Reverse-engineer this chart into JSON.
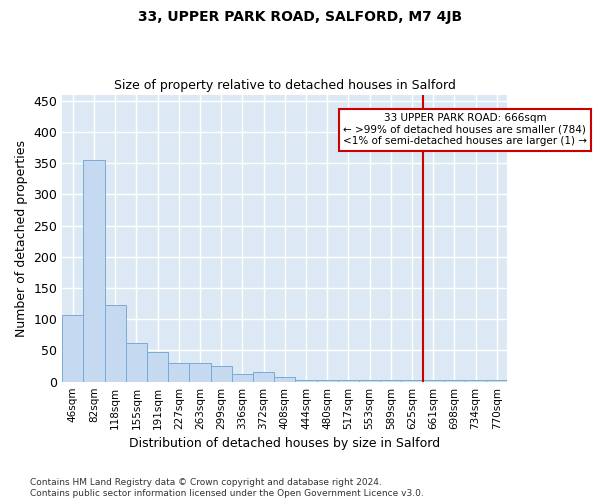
{
  "title": "33, UPPER PARK ROAD, SALFORD, M7 4JB",
  "subtitle": "Size of property relative to detached houses in Salford",
  "xlabel": "Distribution of detached houses by size in Salford",
  "ylabel": "Number of detached properties",
  "bar_color": "#c5d9f0",
  "bar_edge_color": "#7aaad4",
  "background_color": "#dce9f5",
  "grid_color": "#ffffff",
  "categories": [
    "46sqm",
    "82sqm",
    "118sqm",
    "155sqm",
    "191sqm",
    "227sqm",
    "263sqm",
    "299sqm",
    "336sqm",
    "372sqm",
    "408sqm",
    "444sqm",
    "480sqm",
    "517sqm",
    "553sqm",
    "589sqm",
    "625sqm",
    "661sqm",
    "698sqm",
    "734sqm",
    "770sqm"
  ],
  "values": [
    107,
    355,
    123,
    62,
    48,
    30,
    30,
    25,
    13,
    16,
    7,
    3,
    3,
    3,
    3,
    3,
    3,
    3,
    3,
    3,
    3
  ],
  "ylim": [
    0,
    460
  ],
  "yticks": [
    0,
    50,
    100,
    150,
    200,
    250,
    300,
    350,
    400,
    450
  ],
  "vline_index": 17,
  "vline_color": "#cc0000",
  "annotation_text": "33 UPPER PARK ROAD: 666sqm\n← >99% of detached houses are smaller (784)\n<1% of semi-detached houses are larger (1) →",
  "annotation_box_color": "#cc0000",
  "footnote": "Contains HM Land Registry data © Crown copyright and database right 2024.\nContains public sector information licensed under the Open Government Licence v3.0.",
  "figsize": [
    6.0,
    5.0
  ],
  "dpi": 100
}
